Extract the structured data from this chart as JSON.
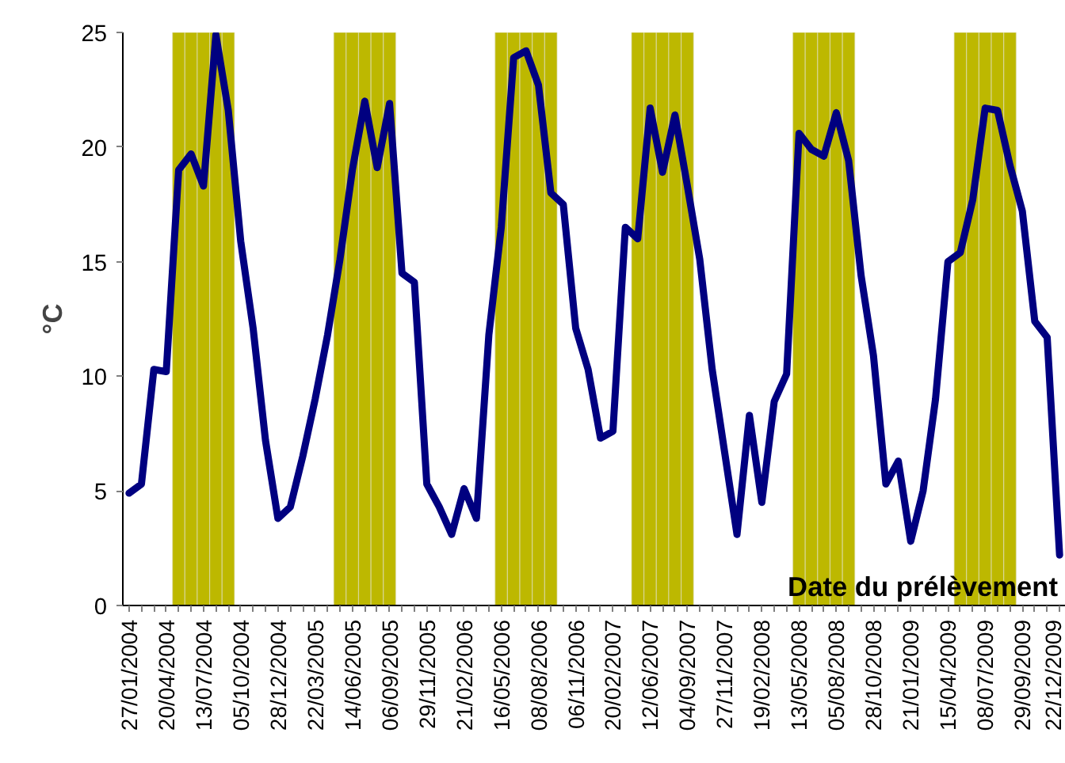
{
  "chart_data": {
    "type": "line",
    "xlabel": "Date du prélèvement",
    "ylabel": "°C",
    "categories": [
      "27/01/2004",
      null,
      null,
      "20/04/2004",
      null,
      null,
      "13/07/2004",
      null,
      null,
      "05/10/2004",
      null,
      null,
      "28/12/2004",
      null,
      null,
      "22/03/2005",
      null,
      null,
      "14/06/2005",
      null,
      null,
      "06/09/2005",
      null,
      null,
      "29/11/2005",
      null,
      null,
      "21/02/2006",
      null,
      null,
      "16/05/2006",
      null,
      null,
      "08/08/2006",
      null,
      null,
      "06/11/2006",
      null,
      null,
      "20/02/2007",
      null,
      null,
      "12/06/2007",
      null,
      null,
      "04/09/2007",
      null,
      null,
      "27/11/2007",
      null,
      null,
      "19/02/2008",
      null,
      null,
      "13/05/2008",
      null,
      null,
      "05/08/2008",
      null,
      null,
      "28/10/2008",
      null,
      null,
      "21/01/2009",
      null,
      null,
      "15/04/2009",
      null,
      null,
      "08/07/2009",
      null,
      null,
      "29/09/2009",
      null,
      null,
      "22/12/2009"
    ],
    "series": [
      {
        "type": "bar",
        "color": "#bdb800",
        "values": [
          null,
          null,
          null,
          null,
          25,
          25,
          25,
          25,
          25,
          null,
          null,
          null,
          null,
          null,
          null,
          null,
          null,
          25,
          25,
          25,
          25,
          25,
          null,
          null,
          null,
          null,
          null,
          null,
          null,
          null,
          25,
          25,
          25,
          25,
          25,
          null,
          null,
          null,
          null,
          null,
          null,
          25,
          25,
          25,
          25,
          25,
          null,
          null,
          null,
          null,
          null,
          null,
          null,
          null,
          25,
          25,
          25,
          25,
          25,
          null,
          null,
          null,
          null,
          null,
          null,
          null,
          null,
          25,
          25,
          25,
          25,
          25,
          null,
          null,
          null,
          null
        ]
      },
      {
        "color": "#000080",
        "values": [
          4.9,
          5.3,
          10.3,
          10.2,
          19.0,
          19.7,
          18.3,
          24.9,
          21.6,
          15.9,
          12.1,
          7.2,
          3.8,
          4.3,
          6.5,
          9.0,
          11.8,
          15.1,
          19.0,
          22.0,
          19.1,
          21.9,
          14.5,
          14.1,
          5.3,
          4.3,
          3.1,
          5.1,
          3.8,
          11.8,
          16.5,
          23.9,
          24.2,
          22.7,
          18.0,
          17.5,
          12.1,
          10.3,
          7.3,
          7.6,
          16.5,
          16.0,
          21.7,
          18.9,
          21.4,
          18.3,
          15.1,
          10.3,
          6.7,
          3.1,
          8.3,
          4.5,
          8.9,
          10.1,
          20.6,
          19.9,
          19.6,
          21.5,
          19.4,
          14.4,
          10.9,
          5.3,
          6.3,
          2.8,
          5.0,
          9.0,
          15.0,
          15.4,
          17.7,
          21.7,
          21.6,
          19.2,
          17.2,
          12.4,
          11.7,
          2.2
        ]
      }
    ],
    "ylim": [
      0,
      25
    ],
    "yticks": [
      0,
      5,
      10,
      15,
      20,
      25
    ],
    "grid": false,
    "marker": "none",
    "line_style": "solid"
  }
}
